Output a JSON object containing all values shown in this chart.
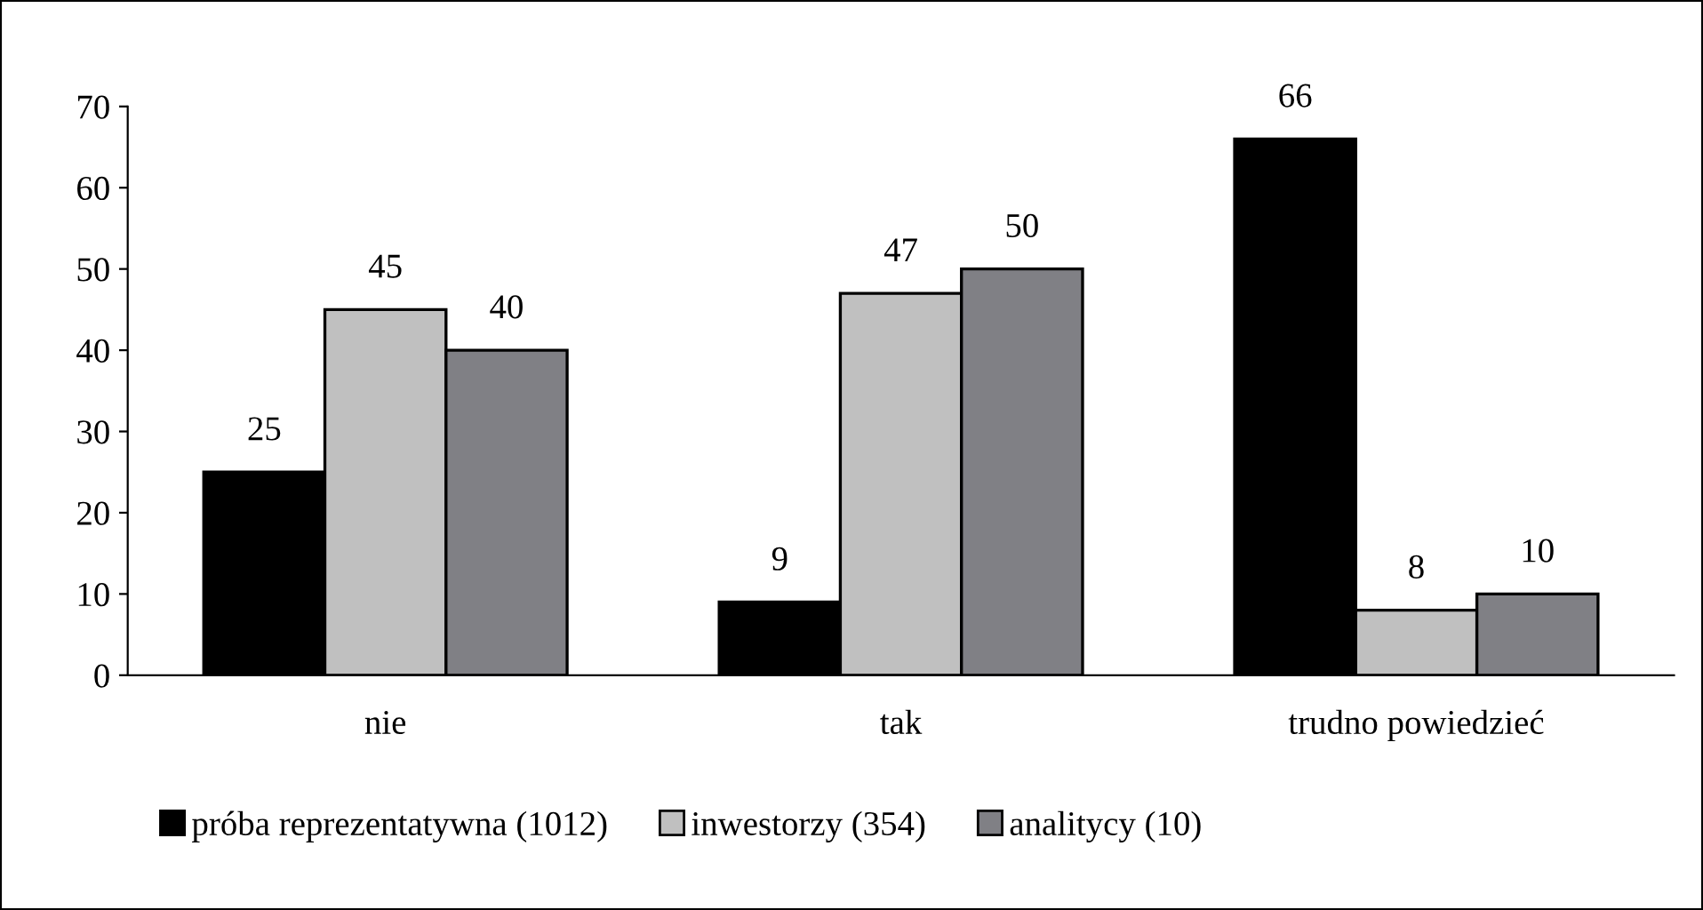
{
  "chart_data": {
    "type": "bar",
    "categories": [
      "nie",
      "tak",
      "trudno powiedzieć"
    ],
    "series": [
      {
        "name": "próba reprezentatywna (1012)",
        "color": "#000000",
        "values": [
          25,
          9,
          66
        ]
      },
      {
        "name": "inwestorzy (354)",
        "color": "#c0c0c0",
        "values": [
          45,
          47,
          8
        ]
      },
      {
        "name": "analitycy (10)",
        "color": "#808085",
        "values": [
          40,
          50,
          10
        ]
      }
    ],
    "ylim": [
      0,
      70
    ],
    "yticks": [
      0,
      10,
      20,
      30,
      40,
      50,
      60,
      70
    ],
    "data_labels": true,
    "grid": false,
    "legend": "bottom"
  }
}
